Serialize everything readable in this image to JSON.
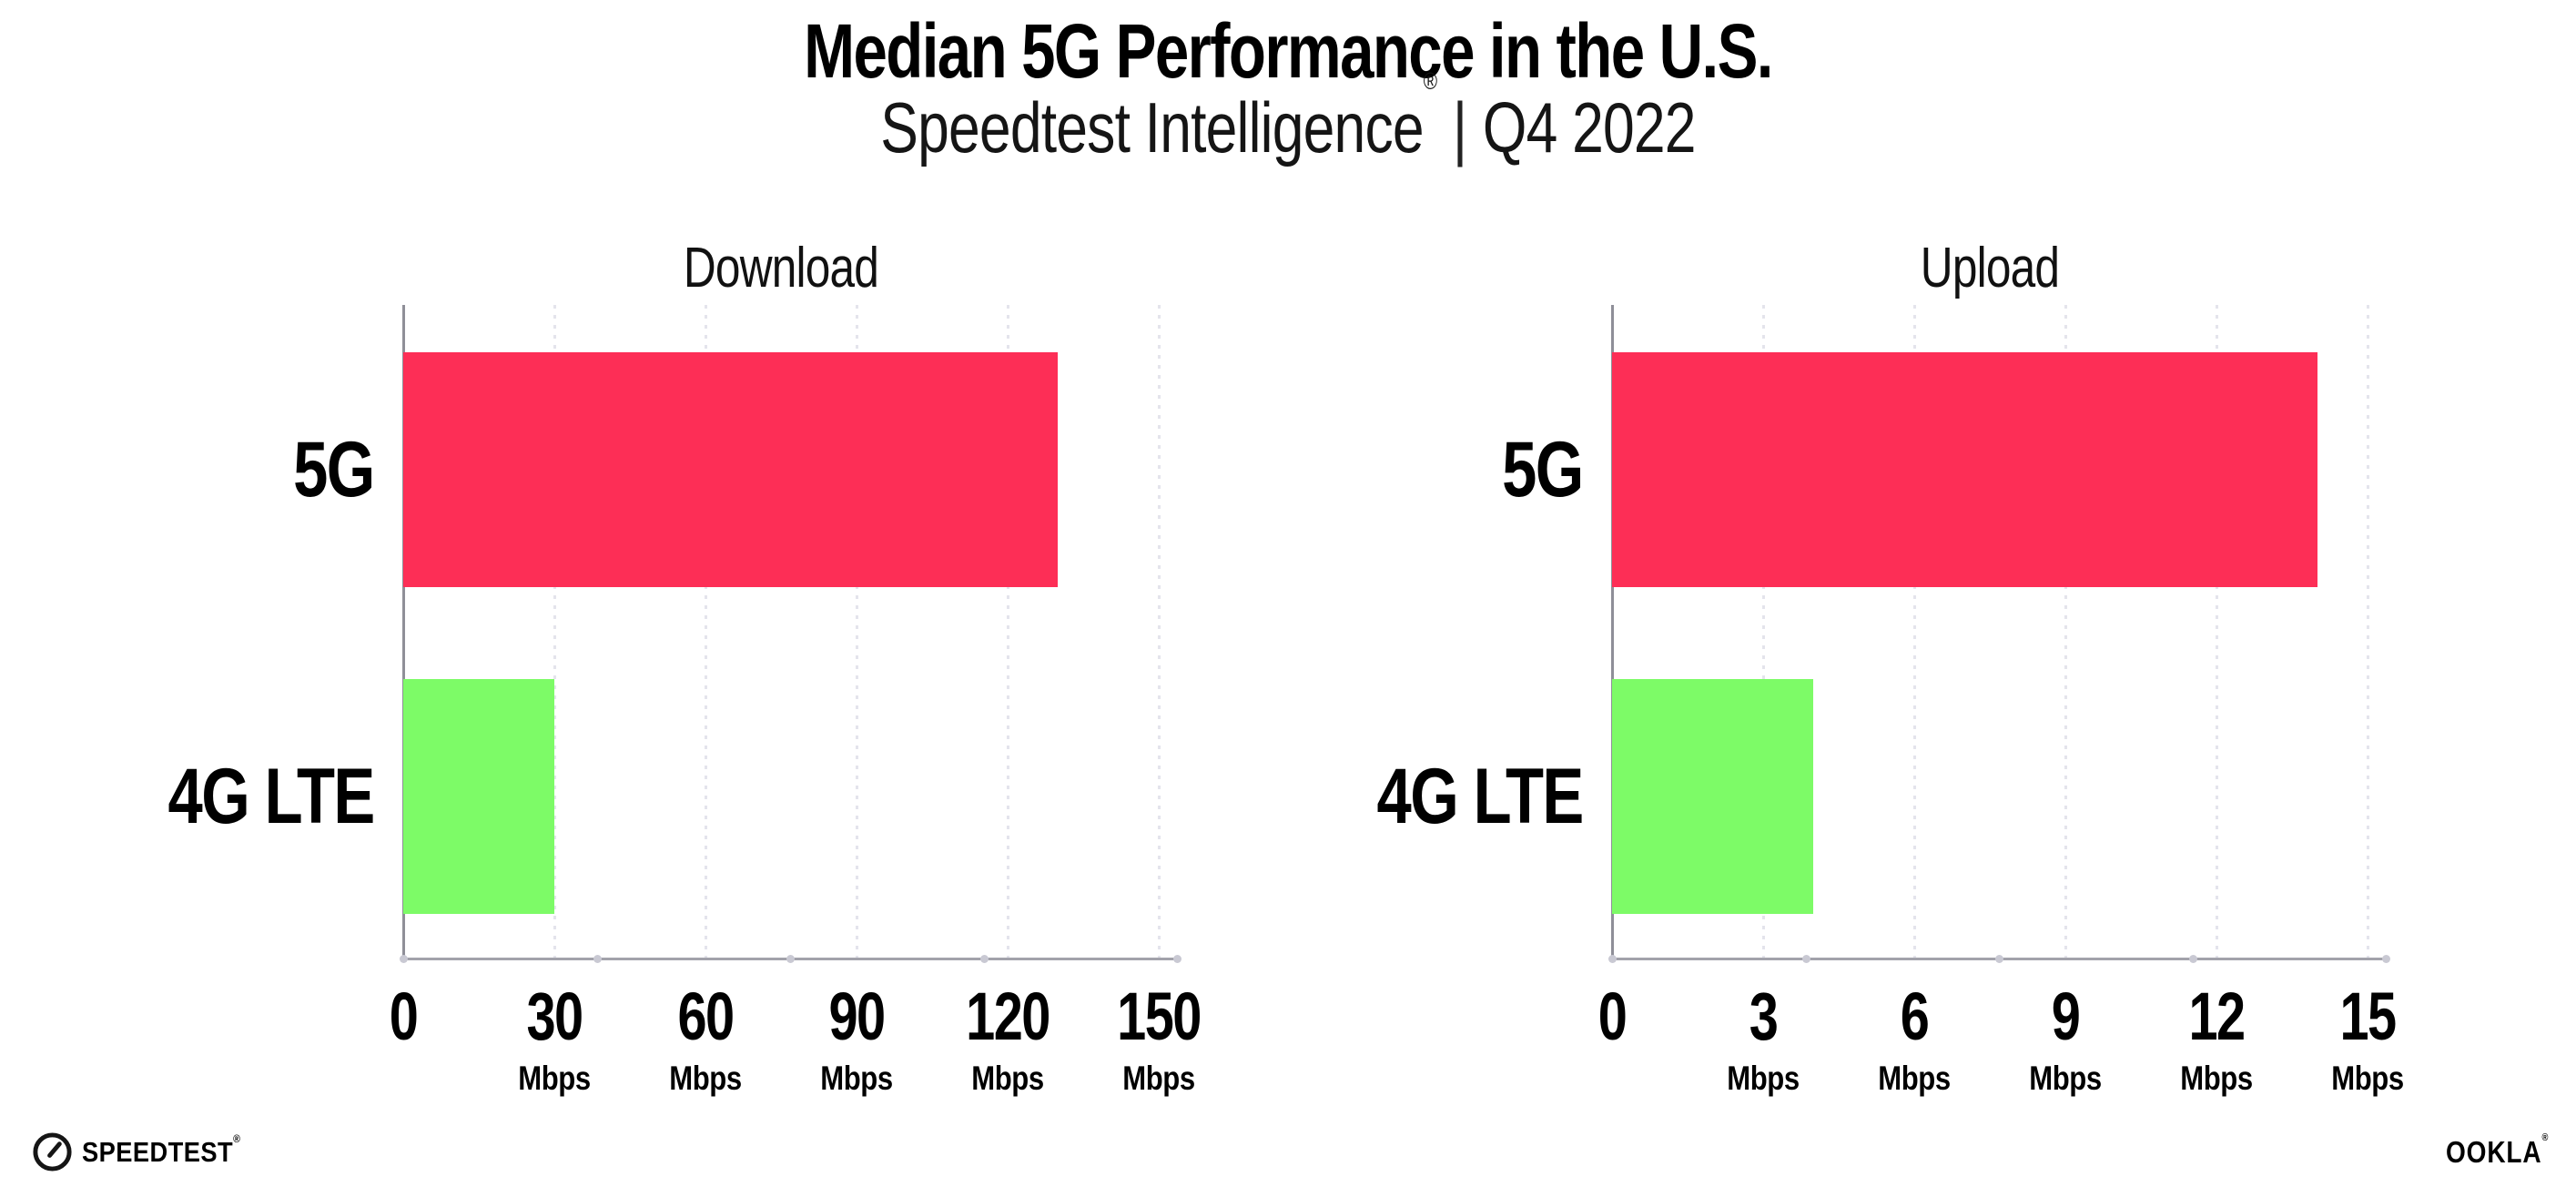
{
  "header": {
    "title": "Median 5G Performance in the U.S.",
    "subtitle": {
      "brand": "Speedtest Intelligence",
      "reg": "®",
      "divider": "|",
      "period": "Q4 2022"
    }
  },
  "footer": {
    "speedtest": {
      "label": "SPEEDTEST",
      "reg": "®",
      "icon": "speedtest-gauge-icon"
    },
    "ookla": {
      "label": "OOKLA",
      "reg": "®"
    }
  },
  "colors": {
    "bar_5g": "#FD2E56",
    "bar_4g_lte": "#7DFB67",
    "axis": "#A2A2AB",
    "gridline": "#E4E4EC",
    "text": "#000000",
    "background": "#FFFFFF"
  },
  "chart_data": [
    {
      "type": "bar",
      "orientation": "horizontal",
      "title": "Download",
      "categories": [
        "5G",
        "4G LTE"
      ],
      "values": [
        130,
        30
      ],
      "unit": "Mbps",
      "xlim": [
        0,
        150
      ],
      "xticks": [
        0,
        30,
        60,
        90,
        120,
        150
      ],
      "grid": "vertical-dotted",
      "legend": "none",
      "bar_colors": [
        "#FD2E56",
        "#7DFB67"
      ]
    },
    {
      "type": "bar",
      "orientation": "horizontal",
      "title": "Upload",
      "categories": [
        "5G",
        "4G LTE"
      ],
      "values": [
        14,
        4
      ],
      "unit": "Mbps",
      "xlim": [
        0,
        15
      ],
      "xticks": [
        0,
        3,
        6,
        9,
        12,
        15
      ],
      "grid": "vertical-dotted",
      "legend": "none",
      "bar_colors": [
        "#FD2E56",
        "#7DFB67"
      ]
    }
  ]
}
